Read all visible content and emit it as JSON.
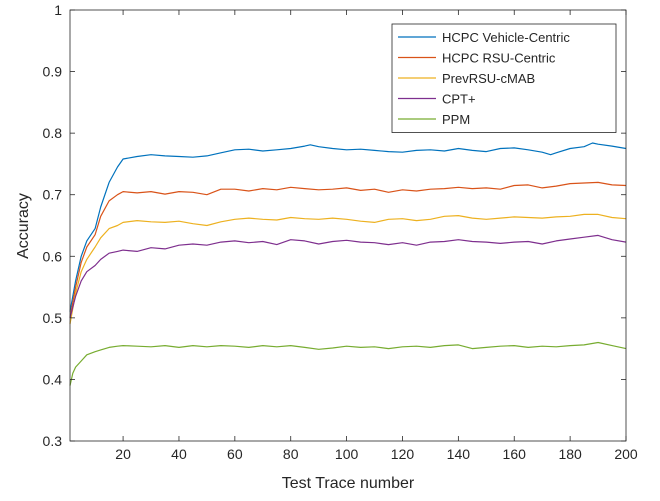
{
  "chart_data": {
    "type": "line",
    "title": "",
    "xlabel": "Test Trace number",
    "ylabel": "Accuracy",
    "xlim": [
      1,
      200
    ],
    "ylim": [
      0.3,
      1
    ],
    "xticks": [
      20,
      40,
      60,
      80,
      100,
      120,
      140,
      160,
      180,
      200
    ],
    "yticks": [
      0.3,
      0.4,
      0.5,
      0.6,
      0.7,
      0.8,
      0.9,
      1
    ],
    "ytick_labels": [
      "0.3",
      "0.4",
      "0.5",
      "0.6",
      "0.7",
      "0.8",
      "0.9",
      "1"
    ],
    "grid": false,
    "legend_position": "top-right",
    "series": [
      {
        "name": "HCPC Vehicle-Centric",
        "color": "#0072BD",
        "x": [
          1,
          3,
          5,
          7,
          10,
          12,
          15,
          18,
          20,
          25,
          30,
          35,
          40,
          45,
          50,
          55,
          60,
          65,
          70,
          75,
          80,
          85,
          87,
          90,
          95,
          100,
          105,
          110,
          115,
          120,
          125,
          130,
          135,
          140,
          145,
          150,
          155,
          160,
          165,
          170,
          173,
          175,
          180,
          185,
          188,
          190,
          195,
          200
        ],
        "y": [
          0.51,
          0.56,
          0.6,
          0.625,
          0.645,
          0.68,
          0.72,
          0.745,
          0.758,
          0.762,
          0.765,
          0.763,
          0.762,
          0.761,
          0.763,
          0.768,
          0.773,
          0.774,
          0.771,
          0.773,
          0.775,
          0.779,
          0.781,
          0.778,
          0.775,
          0.773,
          0.774,
          0.772,
          0.77,
          0.769,
          0.772,
          0.773,
          0.771,
          0.775,
          0.772,
          0.77,
          0.775,
          0.776,
          0.773,
          0.769,
          0.765,
          0.768,
          0.775,
          0.778,
          0.784,
          0.782,
          0.779,
          0.775
        ]
      },
      {
        "name": "HCPC RSU-Centric",
        "color": "#D95319",
        "x": [
          1,
          3,
          5,
          7,
          10,
          12,
          15,
          18,
          20,
          25,
          30,
          35,
          40,
          45,
          50,
          55,
          60,
          65,
          70,
          75,
          80,
          85,
          90,
          95,
          100,
          105,
          110,
          115,
          120,
          125,
          130,
          135,
          140,
          145,
          150,
          155,
          160,
          165,
          170,
          175,
          180,
          185,
          190,
          195,
          200
        ],
        "y": [
          0.5,
          0.55,
          0.59,
          0.615,
          0.635,
          0.665,
          0.69,
          0.7,
          0.705,
          0.703,
          0.705,
          0.701,
          0.705,
          0.704,
          0.7,
          0.709,
          0.709,
          0.706,
          0.71,
          0.708,
          0.712,
          0.71,
          0.708,
          0.709,
          0.711,
          0.707,
          0.709,
          0.704,
          0.708,
          0.706,
          0.709,
          0.71,
          0.712,
          0.71,
          0.711,
          0.709,
          0.715,
          0.716,
          0.711,
          0.714,
          0.718,
          0.719,
          0.72,
          0.716,
          0.715
        ]
      },
      {
        "name": "PrevRSU-cMAB",
        "color": "#EDB120",
        "x": [
          1,
          3,
          5,
          7,
          10,
          12,
          15,
          18,
          20,
          25,
          30,
          35,
          40,
          45,
          50,
          55,
          60,
          65,
          70,
          75,
          80,
          85,
          90,
          95,
          100,
          105,
          110,
          115,
          120,
          125,
          130,
          135,
          140,
          145,
          150,
          155,
          160,
          165,
          170,
          175,
          180,
          185,
          190,
          195,
          200
        ],
        "y": [
          0.49,
          0.54,
          0.575,
          0.595,
          0.615,
          0.63,
          0.645,
          0.65,
          0.655,
          0.658,
          0.656,
          0.655,
          0.657,
          0.653,
          0.65,
          0.656,
          0.66,
          0.662,
          0.66,
          0.659,
          0.663,
          0.661,
          0.66,
          0.662,
          0.66,
          0.657,
          0.655,
          0.66,
          0.661,
          0.658,
          0.66,
          0.665,
          0.666,
          0.662,
          0.66,
          0.662,
          0.664,
          0.663,
          0.662,
          0.664,
          0.665,
          0.668,
          0.668,
          0.663,
          0.661
        ]
      },
      {
        "name": "CPT+",
        "color": "#7E2F8E",
        "x": [
          1,
          3,
          5,
          7,
          10,
          12,
          15,
          18,
          20,
          25,
          30,
          35,
          40,
          45,
          50,
          55,
          60,
          65,
          70,
          75,
          80,
          85,
          90,
          95,
          100,
          105,
          110,
          115,
          120,
          125,
          130,
          135,
          140,
          145,
          150,
          155,
          160,
          165,
          170,
          175,
          180,
          185,
          190,
          195,
          200
        ],
        "y": [
          0.5,
          0.535,
          0.56,
          0.575,
          0.585,
          0.595,
          0.605,
          0.608,
          0.61,
          0.608,
          0.614,
          0.612,
          0.618,
          0.62,
          0.618,
          0.623,
          0.625,
          0.622,
          0.624,
          0.619,
          0.627,
          0.625,
          0.62,
          0.624,
          0.626,
          0.623,
          0.622,
          0.619,
          0.622,
          0.618,
          0.623,
          0.624,
          0.627,
          0.624,
          0.623,
          0.621,
          0.623,
          0.624,
          0.62,
          0.625,
          0.628,
          0.631,
          0.634,
          0.627,
          0.623
        ]
      },
      {
        "name": "PPM",
        "color": "#77AC30",
        "x": [
          1,
          2,
          3,
          5,
          7,
          10,
          12,
          15,
          18,
          20,
          25,
          30,
          35,
          40,
          45,
          50,
          55,
          60,
          65,
          70,
          75,
          80,
          85,
          90,
          95,
          100,
          105,
          110,
          115,
          120,
          125,
          130,
          135,
          140,
          145,
          150,
          155,
          160,
          165,
          170,
          175,
          180,
          185,
          190,
          195,
          200
        ],
        "y": [
          0.39,
          0.41,
          0.42,
          0.43,
          0.44,
          0.445,
          0.448,
          0.452,
          0.454,
          0.455,
          0.454,
          0.453,
          0.455,
          0.452,
          0.455,
          0.453,
          0.455,
          0.454,
          0.452,
          0.455,
          0.453,
          0.455,
          0.452,
          0.449,
          0.451,
          0.454,
          0.452,
          0.453,
          0.45,
          0.453,
          0.454,
          0.452,
          0.455,
          0.456,
          0.45,
          0.452,
          0.454,
          0.455,
          0.452,
          0.454,
          0.453,
          0.455,
          0.456,
          0.46,
          0.455,
          0.45
        ]
      }
    ]
  }
}
